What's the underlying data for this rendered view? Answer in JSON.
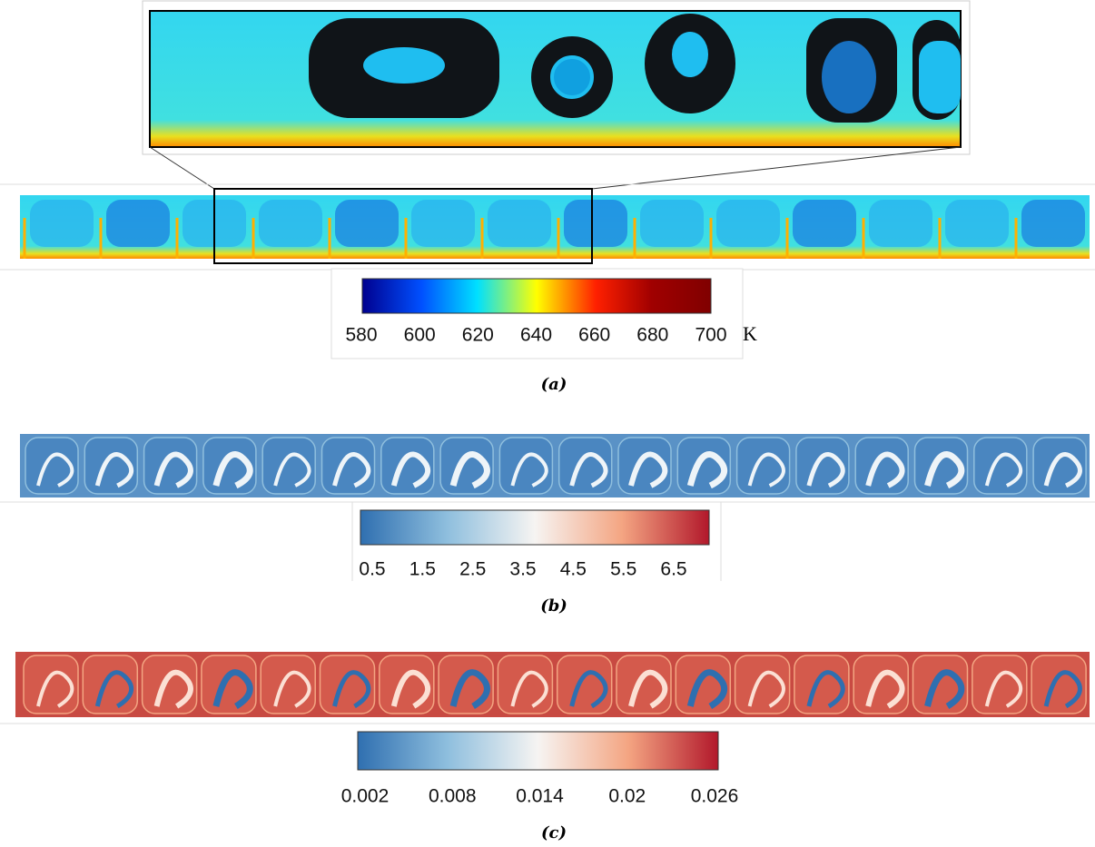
{
  "panels": [
    {
      "label": "(a)",
      "colorbar": {
        "ticks": [
          580,
          600,
          620,
          640,
          660,
          680,
          700
        ],
        "unit": "K"
      }
    },
    {
      "label": "(b)",
      "colorbar": {
        "ticks": [
          0.5,
          1.5,
          2.5,
          3.5,
          4.5,
          5.5,
          6.5
        ]
      }
    },
    {
      "label": "(c)",
      "colorbar": {
        "ticks": [
          0.002,
          0.008,
          0.014,
          0.02,
          0.026
        ]
      }
    }
  ]
}
